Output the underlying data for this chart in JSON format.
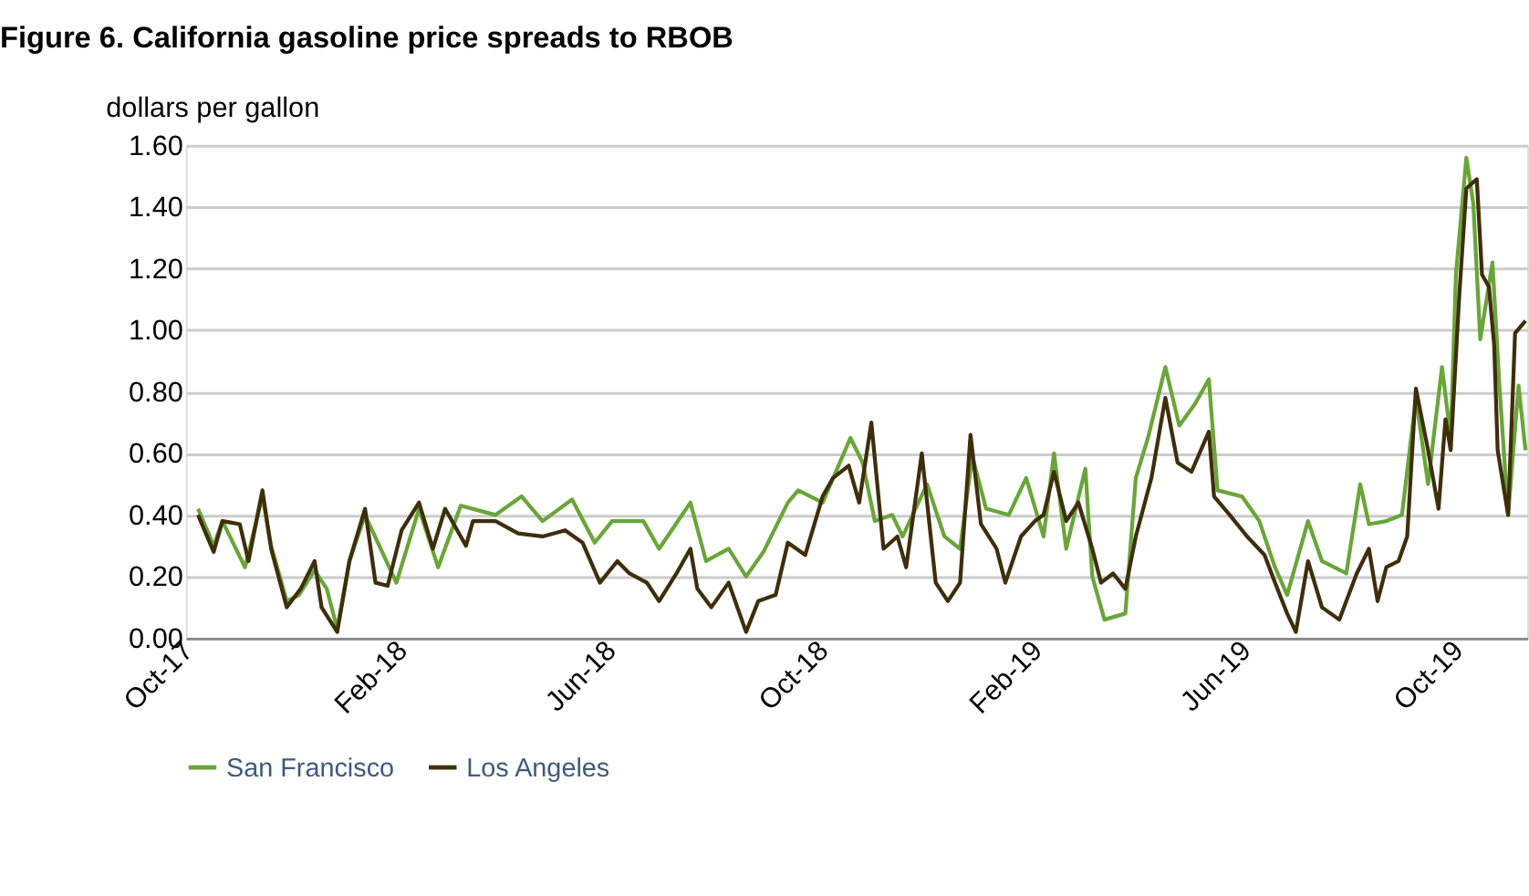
{
  "chart_data": {
    "type": "line",
    "title": "Figure 6. California gasoline price spreads to RBOB",
    "ylabel": "dollars per gallon",
    "xlim": [
      "2017-09-30",
      "2019-11-10"
    ],
    "xticks": [
      {
        "value": "2017-10-01",
        "label": "Oct-17"
      },
      {
        "value": "2018-02-01",
        "label": "Feb-18"
      },
      {
        "value": "2018-06-01",
        "label": "Jun-18"
      },
      {
        "value": "2018-10-01",
        "label": "Oct-18"
      },
      {
        "value": "2019-02-01",
        "label": "Feb-19"
      },
      {
        "value": "2019-06-01",
        "label": "Jun-19"
      },
      {
        "value": "2019-10-01",
        "label": "Oct-19"
      }
    ],
    "ylim": [
      0,
      1.6
    ],
    "yticks": [
      {
        "value": 0,
        "label": "0.00"
      },
      {
        "value": 0.2,
        "label": "0.20"
      },
      {
        "value": 0.4,
        "label": "0.40"
      },
      {
        "value": 0.6,
        "label": "0.60"
      },
      {
        "value": 0.8,
        "label": "0.80"
      },
      {
        "value": 1.0,
        "label": "1.00"
      },
      {
        "value": 1.2,
        "label": "1.20"
      },
      {
        "value": 1.4,
        "label": "1.40"
      },
      {
        "value": 1.6,
        "label": "1.60"
      }
    ],
    "grid": "y",
    "legend": "bottom",
    "marker": "none",
    "line_style": "solid",
    "series": [
      {
        "name": "San Francisco",
        "color": "#6aa539",
        "x": [
          "2017-10-07",
          "2017-10-16",
          "2017-10-21",
          "2017-11-03",
          "2017-11-13",
          "2017-11-18",
          "2017-11-27",
          "2017-12-04",
          "2017-12-13",
          "2017-12-20",
          "2017-12-26",
          "2018-01-02",
          "2018-01-11",
          "2018-01-29",
          "2018-02-11",
          "2018-02-22",
          "2018-03-07",
          "2018-03-27",
          "2018-04-11",
          "2018-04-23",
          "2018-05-10",
          "2018-05-23",
          "2018-06-02",
          "2018-06-20",
          "2018-06-29",
          "2018-07-17",
          "2018-07-26",
          "2018-08-08",
          "2018-08-18",
          "2018-08-28",
          "2018-09-11",
          "2018-09-17",
          "2018-10-01",
          "2018-10-17",
          "2018-10-24",
          "2018-10-31",
          "2018-11-10",
          "2018-11-16",
          "2018-11-30",
          "2018-12-10",
          "2018-12-19",
          "2018-12-26",
          "2019-01-03",
          "2019-01-16",
          "2019-01-26",
          "2019-02-05",
          "2019-02-11",
          "2019-02-18",
          "2019-03-01",
          "2019-03-05",
          "2019-03-12",
          "2019-03-24",
          "2019-03-30",
          "2019-04-06",
          "2019-04-16",
          "2019-04-24",
          "2019-05-03",
          "2019-05-11",
          "2019-05-16",
          "2019-05-30",
          "2019-06-09",
          "2019-06-18",
          "2019-06-25",
          "2019-07-07",
          "2019-07-15",
          "2019-07-29",
          "2019-08-06",
          "2019-08-11",
          "2019-08-21",
          "2019-08-30",
          "2019-09-07",
          "2019-09-14",
          "2019-09-22",
          "2019-09-27",
          "2019-09-30",
          "2019-10-06",
          "2019-10-10",
          "2019-10-14",
          "2019-10-21",
          "2019-10-25",
          "2019-10-30",
          "2019-11-05",
          "2019-11-09"
        ],
        "values": [
          0.42,
          0.3,
          0.38,
          0.23,
          0.46,
          0.3,
          0.12,
          0.14,
          0.22,
          0.16,
          0.03,
          0.25,
          0.4,
          0.18,
          0.42,
          0.23,
          0.43,
          0.4,
          0.46,
          0.38,
          0.45,
          0.31,
          0.38,
          0.38,
          0.29,
          0.44,
          0.25,
          0.29,
          0.2,
          0.28,
          0.44,
          0.48,
          0.44,
          0.65,
          0.57,
          0.38,
          0.4,
          0.33,
          0.5,
          0.33,
          0.29,
          0.59,
          0.42,
          0.4,
          0.52,
          0.33,
          0.6,
          0.29,
          0.55,
          0.2,
          0.06,
          0.08,
          0.52,
          0.65,
          0.88,
          0.69,
          0.76,
          0.84,
          0.48,
          0.46,
          0.38,
          0.23,
          0.14,
          0.38,
          0.25,
          0.21,
          0.5,
          0.37,
          0.38,
          0.4,
          0.78,
          0.5,
          0.88,
          0.65,
          1.18,
          1.56,
          1.41,
          0.97,
          1.22,
          0.82,
          0.4,
          0.82,
          0.61
        ]
      },
      {
        "name": "Los Angeles",
        "color": "#3f2e0c",
        "x": [
          "2017-10-07",
          "2017-10-16",
          "2017-10-21",
          "2017-10-31",
          "2017-11-05",
          "2017-11-13",
          "2017-11-18",
          "2017-11-27",
          "2017-12-05",
          "2017-12-13",
          "2017-12-17",
          "2017-12-26",
          "2018-01-02",
          "2018-01-11",
          "2018-01-17",
          "2018-01-24",
          "2018-02-01",
          "2018-02-11",
          "2018-02-19",
          "2018-02-26",
          "2018-03-10",
          "2018-03-14",
          "2018-03-27",
          "2018-04-09",
          "2018-04-23",
          "2018-05-06",
          "2018-05-16",
          "2018-05-26",
          "2018-06-05",
          "2018-06-12",
          "2018-06-22",
          "2018-06-29",
          "2018-07-09",
          "2018-07-17",
          "2018-07-21",
          "2018-07-29",
          "2018-08-08",
          "2018-08-18",
          "2018-08-25",
          "2018-09-04",
          "2018-09-11",
          "2018-09-21",
          "2018-10-01",
          "2018-10-07",
          "2018-10-16",
          "2018-10-22",
          "2018-10-29",
          "2018-11-05",
          "2018-11-13",
          "2018-11-18",
          "2018-11-27",
          "2018-12-05",
          "2018-12-12",
          "2018-12-19",
          "2018-12-25",
          "2018-12-31",
          "2019-01-09",
          "2019-01-14",
          "2019-01-23",
          "2019-01-31",
          "2019-02-05",
          "2019-02-11",
          "2019-02-18",
          "2019-02-25",
          "2019-03-05",
          "2019-03-10",
          "2019-03-17",
          "2019-03-24",
          "2019-03-30",
          "2019-04-08",
          "2019-04-16",
          "2019-04-23",
          "2019-05-01",
          "2019-05-11",
          "2019-05-14",
          "2019-05-23",
          "2019-06-02",
          "2019-06-12",
          "2019-06-18",
          "2019-06-25",
          "2019-06-30",
          "2019-07-07",
          "2019-07-15",
          "2019-07-25",
          "2019-08-04",
          "2019-08-11",
          "2019-08-16",
          "2019-08-21",
          "2019-08-28",
          "2019-09-02",
          "2019-09-07",
          "2019-09-14",
          "2019-09-20",
          "2019-09-24",
          "2019-09-27",
          "2019-10-02",
          "2019-10-06",
          "2019-10-12",
          "2019-10-15",
          "2019-10-19",
          "2019-10-22",
          "2019-10-24",
          "2019-10-30",
          "2019-11-03",
          "2019-11-09"
        ],
        "values": [
          0.4,
          0.28,
          0.38,
          0.37,
          0.25,
          0.48,
          0.29,
          0.1,
          0.16,
          0.25,
          0.1,
          0.02,
          0.25,
          0.42,
          0.18,
          0.17,
          0.35,
          0.44,
          0.29,
          0.42,
          0.3,
          0.38,
          0.38,
          0.34,
          0.33,
          0.35,
          0.31,
          0.18,
          0.25,
          0.21,
          0.18,
          0.12,
          0.21,
          0.29,
          0.16,
          0.1,
          0.18,
          0.02,
          0.12,
          0.14,
          0.31,
          0.27,
          0.46,
          0.52,
          0.56,
          0.44,
          0.7,
          0.29,
          0.33,
          0.23,
          0.6,
          0.18,
          0.12,
          0.18,
          0.66,
          0.37,
          0.29,
          0.18,
          0.33,
          0.38,
          0.4,
          0.54,
          0.38,
          0.44,
          0.29,
          0.18,
          0.21,
          0.16,
          0.33,
          0.52,
          0.78,
          0.57,
          0.54,
          0.67,
          0.46,
          0.4,
          0.33,
          0.27,
          0.18,
          0.08,
          0.02,
          0.25,
          0.1,
          0.06,
          0.21,
          0.29,
          0.12,
          0.23,
          0.25,
          0.33,
          0.81,
          0.61,
          0.42,
          0.71,
          0.61,
          1.12,
          1.46,
          1.49,
          1.18,
          1.14,
          0.95,
          0.61,
          0.4,
          0.99,
          1.03
        ]
      }
    ]
  }
}
